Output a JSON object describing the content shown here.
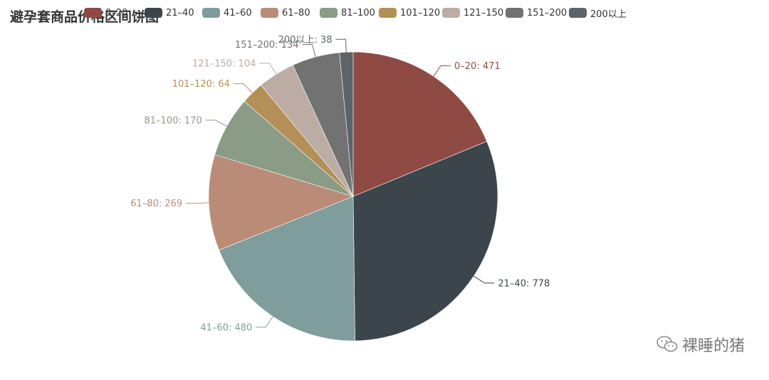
{
  "title": "避孕套商品价格区间饼图",
  "watermark": {
    "text": "裸睡的猪",
    "icon": "wechat-icon"
  },
  "chart_data": {
    "type": "pie",
    "title": "避孕套商品价格区间饼图",
    "legend_position": "top",
    "label_format": "{name}: {value}",
    "start_angle": "12 o'clock, clockwise",
    "slices": [
      {
        "name": "0–20",
        "value": 471,
        "color": "#8E4A43"
      },
      {
        "name": "21–40",
        "value": 778,
        "color": "#3C454C"
      },
      {
        "name": "41–60",
        "value": 480,
        "color": "#7F9D9C"
      },
      {
        "name": "61–80",
        "value": 269,
        "color": "#BA8C78"
      },
      {
        "name": "81–100",
        "value": 170,
        "color": "#8A9C86"
      },
      {
        "name": "101–120",
        "value": 64,
        "color": "#B49058"
      },
      {
        "name": "121–150",
        "value": 104,
        "color": "#BCACA4"
      },
      {
        "name": "151–200",
        "value": 134,
        "color": "#727272"
      },
      {
        "name": "200以上",
        "value": 38,
        "color": "#5D6469"
      }
    ]
  }
}
